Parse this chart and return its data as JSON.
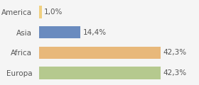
{
  "categories": [
    "America",
    "Asia",
    "Africa",
    "Europa"
  ],
  "values": [
    1.0,
    14.4,
    42.3,
    42.3
  ],
  "labels": [
    "1,0%",
    "14,4%",
    "42,3%",
    "42,3%"
  ],
  "bar_colors": [
    "#f0d080",
    "#6a8bbf",
    "#e8b87a",
    "#b5c98e"
  ],
  "background_color": "#f5f5f5",
  "xlim": [
    0,
    55
  ],
  "bar_height": 0.62,
  "label_fontsize": 7.5,
  "tick_fontsize": 7.5
}
